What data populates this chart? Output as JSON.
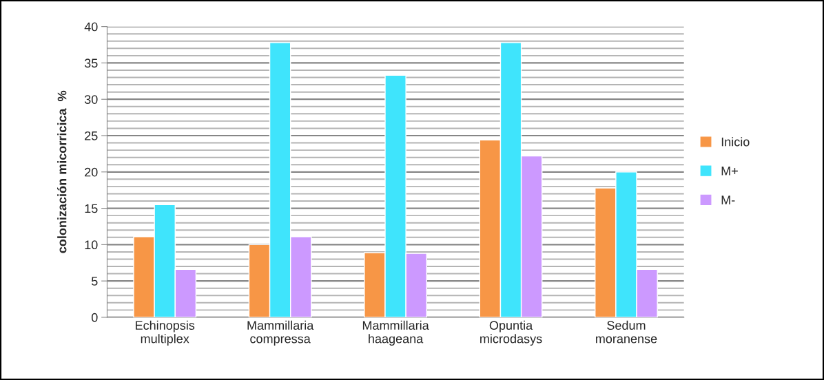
{
  "chart_data": {
    "type": "bar",
    "ylabel": "colonización micorricica  %",
    "categories": [
      "Echinopsis\nmultiplex",
      "Mammillaria\ncompressa",
      "Mammillaria\nhaageana",
      "Opuntia\nmicrodasys",
      "Sedum\nmoranense"
    ],
    "series": [
      {
        "name": "Inicio",
        "color": "#f79646",
        "values": [
          11.1,
          10.0,
          8.9,
          24.4,
          17.8
        ]
      },
      {
        "name": "M+",
        "color": "#3fe4fc",
        "values": [
          15.5,
          37.8,
          33.3,
          37.8,
          20.0
        ]
      },
      {
        "name": "M-",
        "color": "#cc99ff",
        "values": [
          6.6,
          11.1,
          8.8,
          22.2,
          6.6
        ]
      }
    ],
    "ylim": [
      0,
      40
    ],
    "yticks": [
      0,
      {
        "value": 1,
        "label": null
      },
      {
        "value": 2,
        "label": null
      },
      {
        "value": 3,
        "label": null
      },
      {
        "value": 4,
        "label": null
      },
      5,
      {
        "value": 6,
        "label": null
      },
      {
        "value": 7,
        "label": null
      },
      {
        "value": 8,
        "label": null
      },
      {
        "value": 9,
        "label": null
      },
      10,
      {
        "value": 11,
        "label": null
      },
      {
        "value": 12,
        "label": null
      },
      {
        "value": 13,
        "label": null
      },
      {
        "value": 14,
        "label": null
      },
      15,
      {
        "value": 16,
        "label": null
      },
      {
        "value": 17,
        "label": null
      },
      {
        "value": 18,
        "label": null
      },
      {
        "value": 19,
        "label": null
      },
      20,
      {
        "value": 21,
        "label": null
      },
      {
        "value": 22,
        "label": null
      },
      {
        "value": 23,
        "label": null
      },
      {
        "value": 24,
        "label": null
      },
      25,
      {
        "value": 26,
        "label": null
      },
      {
        "value": 27,
        "label": null
      },
      {
        "value": 28,
        "label": null
      },
      {
        "value": 29,
        "label": null
      },
      30,
      {
        "value": 31,
        "label": null
      },
      {
        "value": 32,
        "label": null
      },
      {
        "value": 33,
        "label": null
      },
      {
        "value": 34,
        "label": null
      },
      35,
      {
        "value": 36,
        "label": null
      },
      {
        "value": 37,
        "label": null
      },
      {
        "value": 38,
        "label": null
      },
      {
        "value": 39,
        "label": null
      },
      40
    ],
    "grid": "y",
    "legend": "right"
  }
}
